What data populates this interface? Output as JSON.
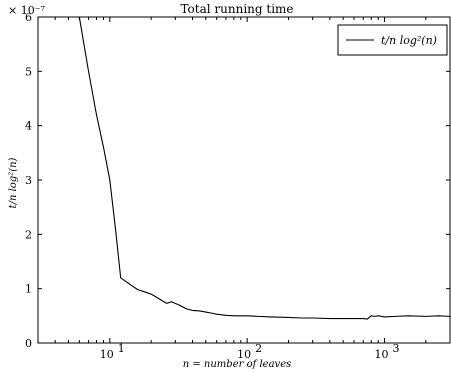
{
  "chart_data": {
    "type": "line",
    "title": "Total running time",
    "xlabel": "n = number of leaves",
    "ylabel": "t/n log²(n)",
    "x_scale": "log",
    "xlim": [
      3,
      3000
    ],
    "ylim": [
      0,
      6
    ],
    "y_multiplier": "× 10⁻⁷",
    "x_ticks": [
      {
        "value": 10,
        "label": "10"
      },
      {
        "value": 100,
        "label": "10"
      },
      {
        "value": 1000,
        "label": "10"
      }
    ],
    "x_tick_exponents": [
      "1",
      "2",
      "3"
    ],
    "y_ticks": [
      "0",
      "1",
      "2",
      "3",
      "4",
      "5",
      "6"
    ],
    "grid": false,
    "legend": {
      "position": "top-right",
      "entries": [
        "t/n log²(n)"
      ]
    },
    "series": [
      {
        "name": "t/n log²(n)",
        "x": [
          6,
          7,
          8,
          9,
          10,
          11,
          12,
          14,
          16,
          18,
          20,
          22,
          24,
          26,
          28,
          32,
          36,
          40,
          45,
          50,
          55,
          60,
          70,
          80,
          100,
          120,
          150,
          200,
          250,
          300,
          400,
          500,
          600,
          700,
          750,
          800,
          850,
          900,
          1000,
          1200,
          1500,
          2000,
          2500,
          3000
        ],
        "y": [
          6.0,
          5.0,
          4.2,
          3.6,
          3.0,
          2.1,
          1.2,
          1.08,
          0.98,
          0.94,
          0.9,
          0.84,
          0.78,
          0.73,
          0.76,
          0.7,
          0.63,
          0.6,
          0.59,
          0.57,
          0.55,
          0.53,
          0.51,
          0.5,
          0.5,
          0.49,
          0.48,
          0.47,
          0.46,
          0.46,
          0.45,
          0.45,
          0.45,
          0.45,
          0.44,
          0.5,
          0.49,
          0.5,
          0.48,
          0.49,
          0.5,
          0.49,
          0.5,
          0.49
        ]
      }
    ]
  }
}
